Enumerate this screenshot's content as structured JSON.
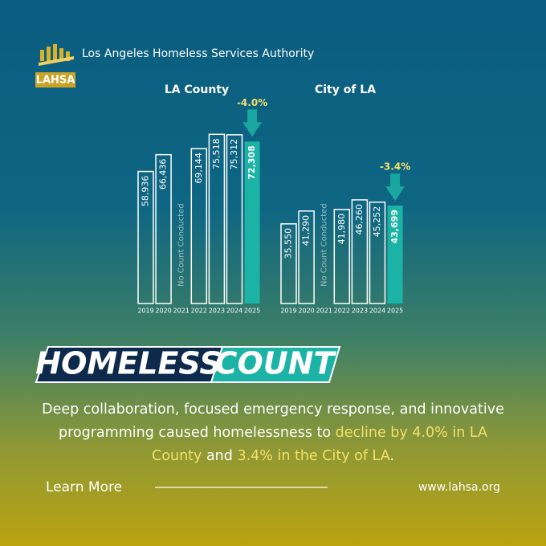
{
  "header": {
    "organization": "Los Angeles Homeless Services Authority",
    "logo_text": "LAHSA"
  },
  "chart_data": [
    {
      "type": "bar",
      "title": "LA County",
      "categories": [
        "2019",
        "2020",
        "2021",
        "2022",
        "2023",
        "2024",
        "2025"
      ],
      "values": [
        58936,
        66436,
        null,
        69144,
        75518,
        75312,
        72308
      ],
      "value_labels": [
        "58,936",
        "66,436",
        null,
        "69,144",
        "75,518",
        "75,312",
        "72,308"
      ],
      "gap_label": "No Count Conducted",
      "change_label": "-4.0%",
      "color": "#ffffff",
      "highlight_color": "#1bb3a5"
    },
    {
      "type": "bar",
      "title": "City of LA",
      "categories": [
        "2019",
        "2020",
        "2021",
        "2022",
        "2023",
        "2024",
        "2025"
      ],
      "values": [
        35550,
        41290,
        null,
        41980,
        46260,
        45252,
        43699
      ],
      "value_labels": [
        "35,550",
        "41,290",
        null,
        "41,980",
        "46,260",
        "45,252",
        "43,699"
      ],
      "gap_label": "No Count Conducted",
      "change_label": "-3.4%",
      "color": "#ffffff",
      "highlight_color": "#1bb3a5"
    }
  ],
  "banner": {
    "word1": "HOMELESS",
    "word2": "COUNT"
  },
  "body": {
    "segments": [
      {
        "text": "Deep collaboration, focused emergency response, and innovative programming caused homelessness to ",
        "highlight": false
      },
      {
        "text": "decline by 4.0% in LA County",
        "highlight": true
      },
      {
        "text": " and ",
        "highlight": false
      },
      {
        "text": "3.4% in the City of LA",
        "highlight": true
      },
      {
        "text": ".",
        "highlight": false
      }
    ]
  },
  "footer": {
    "link": "Learn More",
    "url": "www.lahsa.org"
  }
}
